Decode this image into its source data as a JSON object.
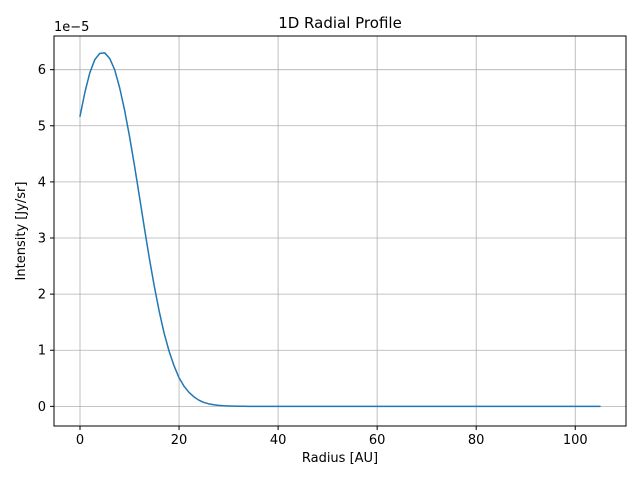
{
  "chart_data": {
    "type": "line",
    "title": "1D Radial Profile",
    "xlabel": "Radius [AU]",
    "ylabel": "Intensity [Jy/sr]",
    "y_offset_text": "1e−5",
    "xlim": [
      -5.25,
      110.25
    ],
    "ylim": [
      -0.35,
      6.6
    ],
    "y_multiplier": 1e-05,
    "grid": true,
    "x_ticks": [
      0,
      20,
      40,
      60,
      80,
      100
    ],
    "x_tick_labels": [
      "0",
      "20",
      "40",
      "60",
      "80",
      "100"
    ],
    "y_ticks": [
      0,
      1,
      2,
      3,
      4,
      5,
      6
    ],
    "y_tick_labels": [
      "0",
      "1",
      "2",
      "3",
      "4",
      "5",
      "6"
    ],
    "series": [
      {
        "color": "#1f77b4",
        "x": [
          0,
          1,
          2,
          3,
          4,
          5,
          6,
          7,
          8,
          9,
          10,
          11,
          12,
          13,
          14,
          15,
          16,
          17,
          18,
          19,
          20,
          21,
          22,
          23,
          24,
          25,
          26,
          27,
          28,
          29,
          30,
          31,
          32,
          33,
          34,
          35,
          36,
          38,
          40,
          45,
          50,
          60,
          70,
          80,
          90,
          100,
          105
        ],
        "y": [
          5.17,
          5.6,
          5.95,
          6.18,
          6.29,
          6.3,
          6.2,
          6.0,
          5.68,
          5.28,
          4.81,
          4.29,
          3.74,
          3.18,
          2.64,
          2.14,
          1.69,
          1.3,
          0.98,
          0.72,
          0.51,
          0.36,
          0.25,
          0.17,
          0.11,
          0.07,
          0.045,
          0.028,
          0.017,
          0.01,
          0.006,
          0.004,
          0.002,
          0.001,
          0.0006,
          0.0003,
          0.0002,
          0.0001,
          0,
          0,
          0,
          0,
          0,
          0,
          0,
          0,
          0
        ]
      }
    ]
  }
}
